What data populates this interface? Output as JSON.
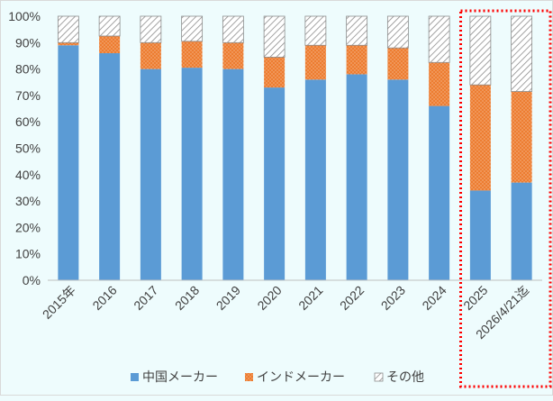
{
  "chart_data": {
    "type": "bar",
    "stacked": true,
    "categories": [
      "2015年",
      "2016",
      "2017",
      "2018",
      "2019",
      "2020",
      "2021",
      "2022",
      "2023",
      "2024",
      "2025",
      "2026/4/21迄"
    ],
    "series": [
      {
        "name": "中国メーカー",
        "color": "#5b9bd5",
        "pattern": "solid",
        "values": [
          89,
          86,
          80,
          80.5,
          80,
          73,
          76,
          78,
          76,
          66,
          34,
          37
        ]
      },
      {
        "name": "インドメーカー",
        "color": "#ed7d31",
        "pattern": "dotted",
        "values": [
          1,
          6.5,
          10,
          10,
          10,
          11.5,
          13,
          11,
          12,
          16.5,
          40,
          34.5
        ]
      },
      {
        "name": "その他",
        "color": "#a5a5a5",
        "pattern": "hatched",
        "values": [
          10,
          7.5,
          10,
          9.5,
          10,
          15.5,
          11,
          11,
          12,
          17.5,
          26,
          28.5
        ]
      }
    ],
    "y_ticks": [
      "0%",
      "10%",
      "20%",
      "30%",
      "40%",
      "50%",
      "60%",
      "70%",
      "80%",
      "90%",
      "100%"
    ],
    "ylim": [
      0,
      100
    ],
    "grid": false,
    "legend_position": "bottom",
    "highlight": {
      "categories": [
        "2025",
        "2026/4/21迄"
      ],
      "style": "red dotted box",
      "color": "#ff0000"
    }
  }
}
